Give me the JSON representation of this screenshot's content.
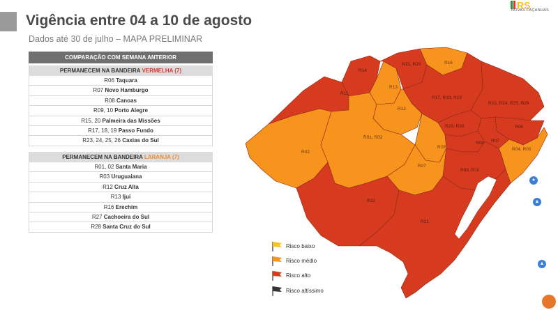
{
  "title": "Vigência entre 04 a 10 de agosto",
  "subtitle": "Dados até 30 de julho – MAPA PRELIMINAR",
  "logo": {
    "mark": "RS",
    "tagline": "NOVAS FAÇANHAS"
  },
  "comparison_header": "COMPARAÇÃO COM SEMANA ANTERIOR",
  "red_group": {
    "prefix": "PERMANECEM NA BANDEIRA ",
    "flag": "VERMELHA (7)",
    "rows": [
      {
        "code": "R06",
        "name": "Taquara"
      },
      {
        "code": "R07",
        "name": "Novo Hamburgo"
      },
      {
        "code": "R08",
        "name": "Canoas"
      },
      {
        "code": "R09, 10",
        "name": "Porto Alegre"
      },
      {
        "code": "R15, 20",
        "name": "Palmeira das Missões"
      },
      {
        "code": "R17, 18, 19",
        "name": "Passo Fundo"
      },
      {
        "code": "R23, 24, 25, 26",
        "name": "Caxias do Sul"
      }
    ]
  },
  "orange_group": {
    "prefix": "PERMANECEM NA BANDEIRA ",
    "flag": "LARANJA (7)",
    "rows": [
      {
        "code": "R01, 02",
        "name": "Santa Maria"
      },
      {
        "code": "R03",
        "name": "Uruguaiana"
      },
      {
        "code": "R12",
        "name": "Cruz Alta"
      },
      {
        "code": "R13",
        "name": "Ijuí"
      },
      {
        "code": "R16",
        "name": "Erechim"
      },
      {
        "code": "R27",
        "name": "Cachoeira do Sul"
      },
      {
        "code": "R28",
        "name": "Santa Cruz do Sul"
      }
    ]
  },
  "map": {
    "colors": {
      "red": "#d63b20",
      "orange": "#f7941d",
      "border": "#8a2a14"
    },
    "regions": [
      {
        "label": "R14",
        "risk": "alto"
      },
      {
        "label": "R15, R20",
        "risk": "alto"
      },
      {
        "label": "R16",
        "risk": "médio"
      },
      {
        "label": "R11",
        "risk": "alto"
      },
      {
        "label": "R13",
        "risk": "médio"
      },
      {
        "label": "R17, R18, R19",
        "risk": "alto"
      },
      {
        "label": "R12",
        "risk": "médio"
      },
      {
        "label": "R23, R24, R25, R26",
        "risk": "alto"
      },
      {
        "label": "R29, R30",
        "risk": "alto"
      },
      {
        "label": "R06",
        "risk": "alto"
      },
      {
        "label": "R01, R02",
        "risk": "médio"
      },
      {
        "label": "R08",
        "risk": "alto"
      },
      {
        "label": "R07",
        "risk": "alto"
      },
      {
        "label": "R04, R05",
        "risk": "médio"
      },
      {
        "label": "R03",
        "risk": "médio"
      },
      {
        "label": "R28",
        "risk": "médio"
      },
      {
        "label": "R27",
        "risk": "médio"
      },
      {
        "label": "R09, R10",
        "risk": "alto"
      },
      {
        "label": "R22",
        "risk": "alto"
      },
      {
        "label": "R21",
        "risk": "alto"
      }
    ]
  },
  "legend": [
    {
      "label": "Risco baixo",
      "color": "#f8c61a"
    },
    {
      "label": "Risco médio",
      "color": "#f7941d"
    },
    {
      "label": "Risco alto",
      "color": "#d63b20"
    },
    {
      "label": "Risco altíssimo",
      "color": "#333333"
    }
  ]
}
